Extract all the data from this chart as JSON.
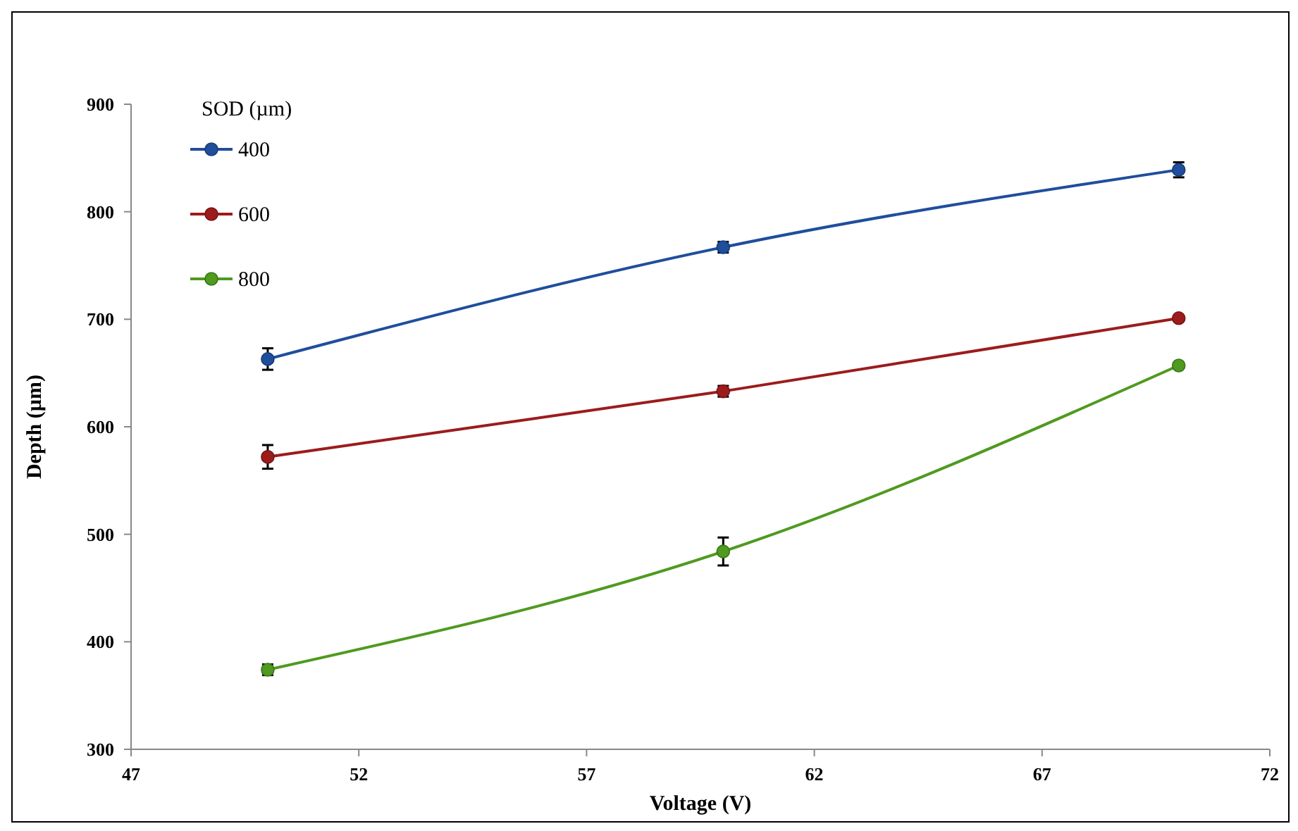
{
  "chart_data": {
    "type": "line",
    "xlabel": "Voltage (V)",
    "ylabel": "Depth (µm)",
    "legend_title": "SOD (µm)",
    "legend": "top left",
    "marker": "circle",
    "line_style": "solid",
    "grid": false,
    "x": [
      50,
      60,
      70
    ],
    "xlim": [
      47,
      72
    ],
    "xticks": [
      47,
      52,
      57,
      62,
      67,
      72
    ],
    "ylim": [
      300,
      900
    ],
    "yticks": [
      300,
      400,
      500,
      600,
      700,
      800,
      900
    ],
    "series": [
      {
        "name": "400",
        "color": "#1f4e9c",
        "values": [
          663,
          767,
          839
        ],
        "errors": [
          10,
          5,
          7
        ]
      },
      {
        "name": "600",
        "color": "#9c1c1c",
        "values": [
          572,
          633,
          701
        ],
        "errors": [
          11,
          5,
          null
        ]
      },
      {
        "name": "800",
        "color": "#4f9a1f",
        "values": [
          374,
          484,
          657
        ],
        "errors": [
          5,
          13,
          null
        ]
      }
    ]
  }
}
